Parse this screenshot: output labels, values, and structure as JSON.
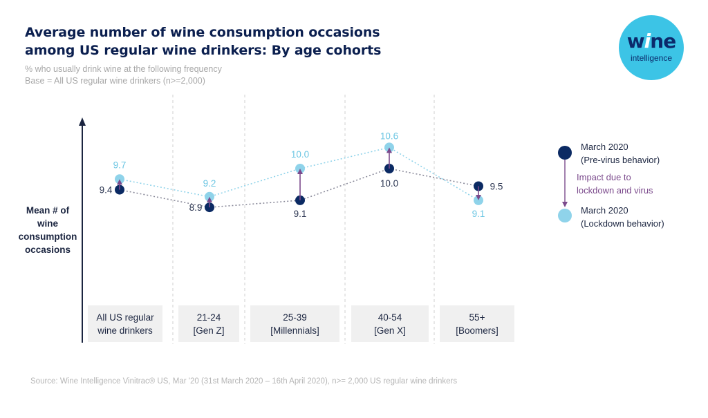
{
  "header": {
    "title_line1": "Average number of wine consumption occasions",
    "title_line2": "among US regular wine drinkers: By age cohorts",
    "subtitle_line1": "% who usually drink wine at the following frequency",
    "subtitle_line2": "Base = All US regular wine drinkers (n>=2,000)"
  },
  "logo": {
    "word1_pre": "w",
    "word1_i": "i",
    "word1_post": "ne",
    "word2": "intelligence",
    "color": "#3cc4e6"
  },
  "footer": {
    "source": "Source: Wine Intelligence Vinitrac® US, Mar '20 (31st March 2020 – 16th April 2020), n>= 2,000 US regular wine drinkers"
  },
  "colors": {
    "pre_virus": "#0b2a63",
    "lockdown": "#8fd3ea",
    "impact_arrow": "#7b4a8c",
    "lockdown_label": "#6cc6e3"
  },
  "chart_data": {
    "type": "scatter",
    "title": "Average number of wine consumption occasions among US regular wine drinkers: By age cohorts",
    "ylabel": "Mean # of wine consumption occasions",
    "ylabel_lines": [
      "Mean # of",
      "wine",
      "consumption",
      "occasions"
    ],
    "xlabel": "",
    "ylim": [
      8.0,
      11.0
    ],
    "grid": false,
    "categories": [
      "All US regular wine drinkers",
      "21-24 [Gen Z]",
      "25-39 [Millennials]",
      "40-54 [Gen X]",
      "55+ [Boomers]"
    ],
    "category_lines": [
      [
        "All US regular",
        "wine drinkers"
      ],
      [
        "21-24",
        "[Gen Z]"
      ],
      [
        "25-39",
        "[Millennials]"
      ],
      [
        "40-54",
        "[Gen X]"
      ],
      [
        "55+",
        "[Boomers]"
      ]
    ],
    "series": [
      {
        "name": "March 2020 (Pre-virus behavior)",
        "values": [
          9.4,
          8.9,
          9.1,
          10.0,
          9.5
        ],
        "labels": [
          "9.4",
          "8.9",
          "9.1",
          "10.0",
          "9.5"
        ]
      },
      {
        "name": "March 2020 (Lockdown behavior)",
        "values": [
          9.7,
          9.2,
          10.0,
          10.6,
          9.1
        ],
        "labels": [
          "9.7",
          "9.2",
          "10.0",
          "10.6",
          "9.1"
        ]
      }
    ],
    "annotation": "Impact due to lockdown and virus",
    "legend": {
      "placement": "right",
      "pre_line1": "March 2020",
      "pre_line2": "(Pre-virus behavior)",
      "impact_line1": "Impact due to",
      "impact_line2": "lockdown  and virus",
      "lock_line1": "March 2020",
      "lock_line2": "(Lockdown behavior)"
    }
  }
}
